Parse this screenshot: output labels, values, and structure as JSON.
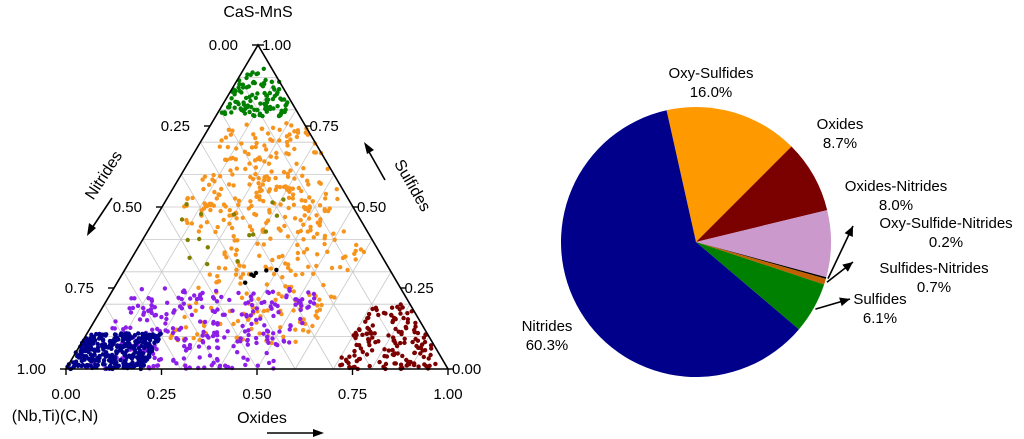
{
  "chart_data": [
    {
      "type": "scatter",
      "subtype": "ternary",
      "title": "",
      "vertices": {
        "top": "CaS-MnS",
        "left": "(Nb,Ti)(C,N)",
        "right": "Oxides"
      },
      "axes": {
        "bottom": {
          "label": "Oxides",
          "ticks": [
            "0.00",
            "0.25",
            "0.50",
            "0.75",
            "1.00"
          ]
        },
        "left": {
          "label": "Nitrides",
          "ticks": [
            "0.00",
            "0.25",
            "0.50",
            "0.75",
            "1.00"
          ]
        },
        "right": {
          "label": "Sulfides",
          "ticks": [
            "1.00",
            "0.75",
            "0.50",
            "0.25",
            "0.00"
          ]
        }
      },
      "grid": true,
      "series": [
        {
          "color": "#008000",
          "clusters": [
            {
              "oxides": [
                0.0,
                0.18
              ],
              "sulfides": [
                0.78,
                0.93
              ],
              "n": 110
            }
          ]
        },
        {
          "color": "#F7941D",
          "clusters": [
            {
              "oxides": [
                0.05,
                0.45
              ],
              "sulfides": [
                0.42,
                0.76
              ],
              "n": 230
            },
            {
              "oxides": [
                0.22,
                0.6
              ],
              "sulfides": [
                0.08,
                0.44
              ],
              "n": 160
            }
          ]
        },
        {
          "color": "#7B0000",
          "clusters": [
            {
              "oxides": [
                0.7,
                0.98
              ],
              "sulfides": [
                0.0,
                0.2
              ],
              "n": 150
            }
          ]
        },
        {
          "color": "#8B1FE8",
          "clusters": [
            {
              "oxides": [
                0.05,
                0.55
              ],
              "sulfides": [
                0.0,
                0.25
              ],
              "n": 260
            }
          ]
        },
        {
          "color": "#00008B",
          "clusters": [
            {
              "oxides": [
                0.0,
                0.2
              ],
              "sulfides": [
                0.0,
                0.11
              ],
              "n": 330
            }
          ]
        },
        {
          "color": "#808000",
          "clusters": [
            {
              "oxides": [
                0.05,
                0.32
              ],
              "sulfides": [
                0.3,
                0.53
              ],
              "n": 16
            }
          ]
        },
        {
          "color": "#000000",
          "clusters": [
            {
              "oxides": [
                0.33,
                0.4
              ],
              "sulfides": [
                0.26,
                0.31
              ],
              "n": 6
            }
          ]
        }
      ]
    },
    {
      "type": "pie",
      "title": "",
      "slices": [
        {
          "label": "Oxy-Sulfides",
          "value": 16.0,
          "value_label": "16.0%",
          "color": "#FF9900"
        },
        {
          "label": "Oxides",
          "value": 8.7,
          "value_label": "8.7%",
          "color": "#7B0000"
        },
        {
          "label": "Oxides-Nitrides",
          "value": 8.0,
          "value_label": "8.0%",
          "color": "#CC99CC"
        },
        {
          "label": "Oxy-Sulfide-Nitrides",
          "value": 0.2,
          "value_label": "0.2%",
          "color": "#000000"
        },
        {
          "label": "Sulfides-Nitrides",
          "value": 0.7,
          "value_label": "0.7%",
          "color": "#C06000"
        },
        {
          "label": "Sulfides",
          "value": 6.1,
          "value_label": "6.1%",
          "color": "#008000"
        },
        {
          "label": "Nitrides",
          "value": 60.3,
          "value_label": "60.3%",
          "color": "#00008B"
        }
      ]
    }
  ]
}
